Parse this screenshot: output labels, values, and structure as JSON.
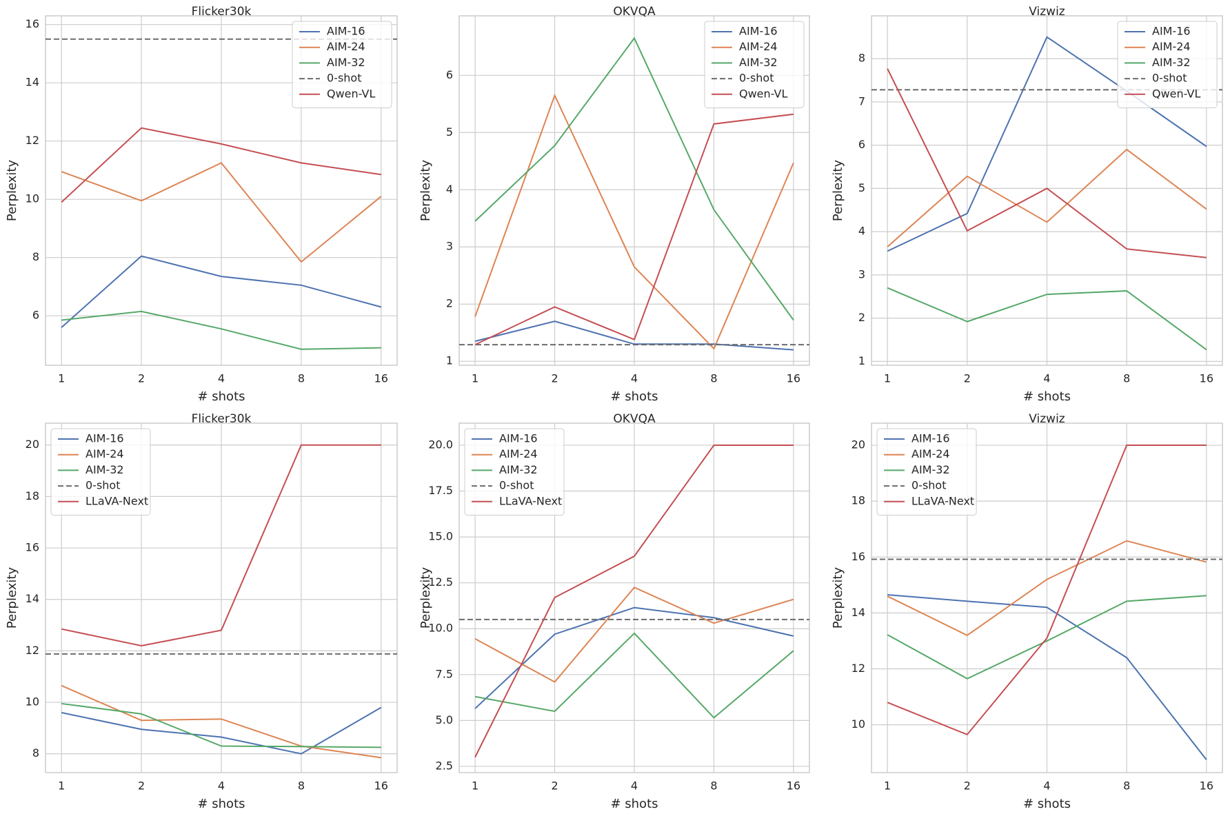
{
  "chart_data": [
    {
      "type": "line",
      "title": "Flicker30k",
      "x_label": "# shots",
      "y_label": "Perplexity",
      "categories": [
        "1",
        "2",
        "4",
        "8",
        "16"
      ],
      "ylim": [
        4.3,
        16.3
      ],
      "yticks": [
        6,
        8,
        10,
        12,
        14,
        16
      ],
      "grid": true,
      "legend": "upper right",
      "series": [
        {
          "name": "AIM-16",
          "color": "#4c72b0",
          "values": [
            5.6,
            8.05,
            7.35,
            7.05,
            6.3
          ]
        },
        {
          "name": "AIM-24",
          "color": "#dd8452",
          "values": [
            10.95,
            9.95,
            11.25,
            7.85,
            10.1
          ]
        },
        {
          "name": "AIM-32",
          "color": "#55a868",
          "values": [
            5.85,
            6.15,
            5.55,
            4.85,
            4.9
          ]
        },
        {
          "name": "0-shot",
          "color": "#6b6b6b",
          "linestyle": "dashed",
          "hline": 15.5
        },
        {
          "name": "Qwen-VL",
          "color": "#c44e52",
          "values": [
            9.9,
            12.45,
            11.9,
            11.25,
            10.85
          ]
        }
      ]
    },
    {
      "type": "line",
      "title": "OKVQA",
      "x_label": "# shots",
      "y_label": "Perplexity",
      "categories": [
        "1",
        "2",
        "4",
        "8",
        "16"
      ],
      "ylim": [
        0.93,
        7.04
      ],
      "yticks": [
        1,
        2,
        3,
        4,
        5,
        6
      ],
      "grid": true,
      "legend": "upper right",
      "series": [
        {
          "name": "AIM-16",
          "color": "#4c72b0",
          "values": [
            1.35,
            1.7,
            1.3,
            1.3,
            1.2
          ]
        },
        {
          "name": "AIM-24",
          "color": "#dd8452",
          "values": [
            1.78,
            5.65,
            2.65,
            1.22,
            4.47
          ]
        },
        {
          "name": "AIM-32",
          "color": "#55a868",
          "values": [
            3.45,
            4.77,
            6.65,
            3.65,
            1.72
          ]
        },
        {
          "name": "0-shot",
          "color": "#6b6b6b",
          "linestyle": "dashed",
          "hline": 1.29
        },
        {
          "name": "Qwen-VL",
          "color": "#c44e52",
          "values": [
            1.29,
            1.95,
            1.38,
            5.15,
            5.32
          ]
        }
      ]
    },
    {
      "type": "line",
      "title": "Vizwiz",
      "x_label": "# shots",
      "y_label": "Perplexity",
      "categories": [
        "1",
        "2",
        "4",
        "8",
        "16"
      ],
      "ylim": [
        0.91,
        8.99
      ],
      "yticks": [
        1,
        2,
        3,
        4,
        5,
        6,
        7,
        8
      ],
      "grid": true,
      "legend": "upper right",
      "series": [
        {
          "name": "AIM-16",
          "color": "#4c72b0",
          "values": [
            3.55,
            4.42,
            8.5,
            7.25,
            5.97
          ]
        },
        {
          "name": "AIM-24",
          "color": "#dd8452",
          "values": [
            3.65,
            5.28,
            4.22,
            5.9,
            4.52
          ]
        },
        {
          "name": "AIM-32",
          "color": "#55a868",
          "values": [
            2.7,
            1.92,
            2.55,
            2.63,
            1.27
          ]
        },
        {
          "name": "0-shot",
          "color": "#6b6b6b",
          "linestyle": "dashed",
          "hline": 7.28
        },
        {
          "name": "Qwen-VL",
          "color": "#c44e52",
          "values": [
            7.77,
            4.02,
            5.0,
            3.6,
            3.4
          ]
        }
      ]
    },
    {
      "type": "line",
      "title": "Flicker30k",
      "x_label": "# shots",
      "y_label": "Perplexity",
      "categories": [
        "1",
        "2",
        "4",
        "8",
        "16"
      ],
      "ylim": [
        7.27,
        20.85
      ],
      "yticks": [
        8,
        10,
        12,
        14,
        16,
        18,
        20
      ],
      "grid": true,
      "legend": "upper left",
      "series": [
        {
          "name": "AIM-16",
          "color": "#4c72b0",
          "values": [
            9.6,
            8.95,
            8.65,
            8.0,
            9.8
          ]
        },
        {
          "name": "AIM-24",
          "color": "#dd8452",
          "values": [
            10.65,
            9.3,
            9.35,
            8.3,
            7.85
          ]
        },
        {
          "name": "AIM-32",
          "color": "#55a868",
          "values": [
            9.95,
            9.55,
            8.3,
            8.28,
            8.25
          ]
        },
        {
          "name": "0-shot",
          "color": "#6b6b6b",
          "linestyle": "dashed",
          "hline": 11.88
        },
        {
          "name": "LLaVA-Next",
          "color": "#c44e52",
          "values": [
            12.85,
            12.2,
            12.8,
            20,
            20
          ]
        }
      ]
    },
    {
      "type": "line",
      "title": "OKVQA",
      "x_label": "# shots",
      "y_label": "Perplexity",
      "categories": [
        "1",
        "2",
        "4",
        "8",
        "16"
      ],
      "ylim": [
        2.16,
        21.2
      ],
      "yticks": [
        2.5,
        {
          "value": 5,
          "label": "5.0"
        },
        7.5,
        {
          "value": 10,
          "label": "10.0"
        },
        12.5,
        {
          "value": 15,
          "label": "15.0"
        },
        17.5,
        {
          "value": 20,
          "label": "20.0"
        }
      ],
      "grid": true,
      "legend": "upper left",
      "series": [
        {
          "name": "AIM-16",
          "color": "#4c72b0",
          "values": [
            5.65,
            9.7,
            11.15,
            10.6,
            9.6
          ]
        },
        {
          "name": "AIM-24",
          "color": "#dd8452",
          "values": [
            9.45,
            7.1,
            12.25,
            10.3,
            11.6
          ]
        },
        {
          "name": "AIM-32",
          "color": "#55a868",
          "values": [
            6.3,
            5.5,
            9.75,
            5.15,
            8.8
          ]
        },
        {
          "name": "0-shot",
          "color": "#6b6b6b",
          "linestyle": "dashed",
          "hline": 10.5
        },
        {
          "name": "LLaVA-Next",
          "color": "#c44e52",
          "values": [
            3.0,
            11.7,
            13.95,
            20,
            20
          ]
        }
      ]
    },
    {
      "type": "line",
      "title": "Vizwiz",
      "x_label": "# shots",
      "y_label": "Perplexity",
      "categories": [
        "1",
        "2",
        "4",
        "8",
        "16"
      ],
      "ylim": [
        8.29,
        20.79
      ],
      "yticks": [
        10,
        12,
        14,
        16,
        18,
        20
      ],
      "grid": true,
      "legend": "upper left",
      "series": [
        {
          "name": "AIM-16",
          "color": "#4c72b0",
          "values": [
            14.65,
            14.42,
            14.2,
            12.4,
            8.75
          ]
        },
        {
          "name": "AIM-24",
          "color": "#dd8452",
          "values": [
            14.6,
            13.2,
            15.2,
            16.58,
            15.82
          ]
        },
        {
          "name": "AIM-32",
          "color": "#55a868",
          "values": [
            13.22,
            11.65,
            13.0,
            14.42,
            14.62
          ]
        },
        {
          "name": "0-shot",
          "color": "#6b6b6b",
          "linestyle": "dashed",
          "hline": 15.92
        },
        {
          "name": "LLaVA-Next",
          "color": "#c44e52",
          "values": [
            10.8,
            9.65,
            13.1,
            20,
            20
          ]
        }
      ]
    }
  ]
}
